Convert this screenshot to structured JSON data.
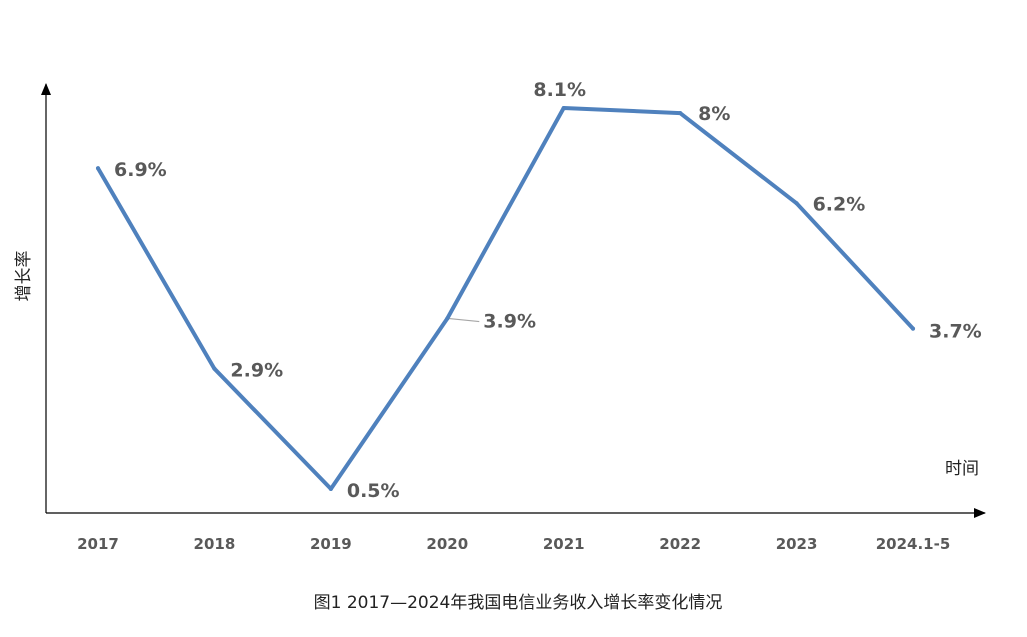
{
  "chart_data": {
    "type": "line",
    "title": "",
    "caption": "图1  2017—2024年我国电信业务收入增长率变化情况",
    "xlabel": "时间",
    "ylabel": "增长率",
    "categories": [
      "2017",
      "2018",
      "2019",
      "2020",
      "2021",
      "2022",
      "2023",
      "2024.1-5"
    ],
    "series": [
      {
        "values": [
          6.9,
          2.9,
          0.5,
          3.9,
          8.1,
          8.0,
          6.2,
          3.7
        ],
        "labels": [
          "6.9%",
          "2.9%",
          "0.5%",
          "3.9%",
          "8.1%",
          "8%",
          "6.2%",
          "3.7%"
        ],
        "color": "#4f81bd"
      }
    ],
    "ylim": [
      0,
      8.5
    ],
    "grid": false,
    "legend": "none"
  },
  "colors": {
    "line": "#4f81bd",
    "axis": "#000000",
    "label_text": "#595959",
    "leader_line": "#a6a6a6"
  }
}
